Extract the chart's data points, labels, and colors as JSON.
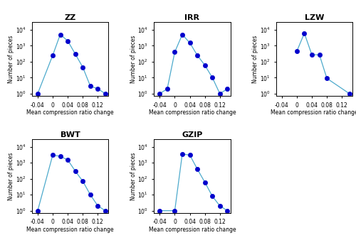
{
  "subplots": [
    {
      "title": "ZZ",
      "x": [
        -0.04,
        0.0,
        0.02,
        0.04,
        0.06,
        0.08,
        0.1,
        0.12,
        0.14
      ],
      "y": [
        1,
        250,
        5000,
        2000,
        300,
        45,
        3,
        2,
        1
      ]
    },
    {
      "title": "IRR",
      "x": [
        -0.04,
        -0.02,
        0.0,
        0.02,
        0.04,
        0.06,
        0.08,
        0.1,
        0.12,
        0.14
      ],
      "y": [
        1,
        2,
        400,
        5000,
        1500,
        250,
        60,
        10,
        1,
        2
      ]
    },
    {
      "title": "LZW",
      "x": [
        0.0,
        0.02,
        0.04,
        0.06,
        0.08,
        0.14
      ],
      "y": [
        450,
        6000,
        270,
        270,
        9,
        1
      ]
    },
    {
      "title": "BWT",
      "x": [
        -0.04,
        0.0,
        0.02,
        0.04,
        0.06,
        0.08,
        0.1,
        0.12,
        0.14
      ],
      "y": [
        1,
        3000,
        2500,
        1500,
        300,
        70,
        10,
        2,
        1
      ]
    },
    {
      "title": "GZIP",
      "x": [
        -0.04,
        0.0,
        0.02,
        0.04,
        0.06,
        0.08,
        0.1,
        0.12,
        0.14
      ],
      "y": [
        1,
        1,
        3500,
        3000,
        400,
        60,
        8,
        2,
        1
      ]
    }
  ],
  "line_color": "#4daacc",
  "marker_color": "#0000cc",
  "marker_size": 4.5,
  "xlabel": "Mean compression ratio change",
  "ylabel": "Number of pieces",
  "xlim": [
    -0.055,
    0.148
  ],
  "xticks": [
    -0.04,
    0,
    0.04,
    0.08,
    0.12
  ],
  "xtick_labels": [
    "-0.04",
    "0",
    "0.04",
    "0.08",
    "0.12"
  ],
  "ylim_log": [
    0.7,
    30000
  ],
  "yticks": [
    1,
    10,
    100,
    1000,
    10000
  ],
  "ytick_labels": [
    "10^0",
    "10^1",
    "10^2",
    "10^3",
    "10^4"
  ]
}
